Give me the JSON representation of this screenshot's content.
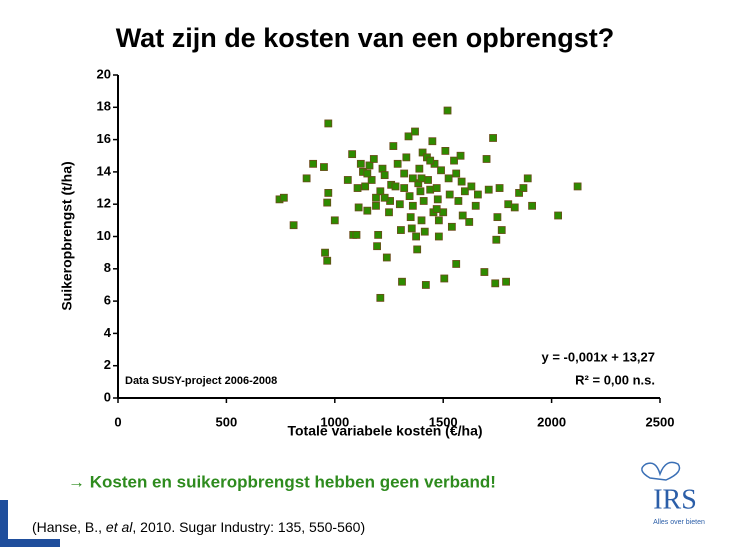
{
  "chart_data": {
    "type": "scatter",
    "title": "Wat zijn de kosten van een opbrengst?",
    "x_label": "Totale variabele kosten (€/ha)",
    "y_label": "Suikeropbrengst (t/ha)",
    "annotations": [
      "Data SUSY-project 2006-2008",
      "y = -0,001x + 13,27",
      "R² = 0,00 n.s."
    ],
    "color": "#2e8b00",
    "xlim": [
      0,
      2500
    ],
    "xticks": [
      0,
      500,
      1000,
      1500,
      2000,
      2500
    ],
    "ylim": [
      0,
      20
    ],
    "yticks": [
      0,
      2,
      4,
      6,
      8,
      10,
      12,
      14,
      16,
      18,
      20
    ],
    "x": [
      745,
      765,
      810,
      870,
      900,
      950,
      955,
      965,
      970,
      970,
      965,
      1000,
      1080,
      1085,
      1100,
      1105,
      1110,
      1120,
      1130,
      1140,
      1150,
      1160,
      1170,
      1180,
      1190,
      1195,
      1200,
      1210,
      1210,
      1220,
      1230,
      1240,
      1250,
      1255,
      1260,
      1270,
      1280,
      1290,
      1300,
      1305,
      1310,
      1320,
      1330,
      1340,
      1345,
      1350,
      1355,
      1360,
      1370,
      1375,
      1380,
      1385,
      1390,
      1395,
      1400,
      1405,
      1410,
      1415,
      1420,
      1425,
      1430,
      1440,
      1450,
      1455,
      1460,
      1470,
      1475,
      1480,
      1490,
      1500,
      1505,
      1510,
      1520,
      1525,
      1530,
      1540,
      1550,
      1560,
      1570,
      1580,
      1585,
      1590,
      1600,
      1620,
      1630,
      1650,
      1660,
      1690,
      1700,
      1710,
      1730,
      1740,
      1745,
      1750,
      1760,
      1770,
      1790,
      1800,
      1830,
      1850,
      1870,
      1890,
      1910,
      2030,
      2120,
      1480,
      1360,
      1230,
      1440,
      1150,
      1560,
      1400,
      1320,
      1470,
      1190,
      1060
    ],
    "values": [
      12.3,
      12.4,
      10.7,
      13.6,
      14.5,
      14.3,
      9,
      8.5,
      17,
      12.7,
      12.1,
      11,
      15.1,
      10.1,
      10.1,
      13,
      11.8,
      14.5,
      14,
      13.1,
      11.6,
      14.4,
      13.5,
      14.8,
      11.9,
      9.4,
      10.1,
      6.2,
      12.8,
      14.2,
      13.8,
      8.7,
      11.5,
      12.2,
      13.2,
      15.6,
      13.1,
      14.5,
      12,
      10.4,
      7.2,
      13,
      14.9,
      16.2,
      12.5,
      11.2,
      10.5,
      11.9,
      16.5,
      10,
      9.2,
      13.3,
      14.2,
      12.8,
      11,
      15.2,
      12.2,
      10.3,
      7,
      14.9,
      13.5,
      12.9,
      15.9,
      11.5,
      14.5,
      13,
      12.3,
      10,
      14.1,
      11.5,
      7.4,
      15.3,
      17.8,
      13.6,
      12.6,
      10.6,
      14.7,
      8.3,
      12.2,
      15,
      13.4,
      11.3,
      12.8,
      10.9,
      13.1,
      11.9,
      12.6,
      7.8,
      14.8,
      12.9,
      16.1,
      7.1,
      9.8,
      11.2,
      13,
      10.4,
      7.2,
      12,
      11.8,
      12.7,
      13,
      13.6,
      11.9,
      11.3,
      13.1,
      11,
      13.6,
      12.4,
      14.7,
      13.9,
      13.9,
      13.6,
      13.9,
      11.7,
      12.4,
      13.5
    ]
  },
  "footer": {
    "conclusion": "→ Kosten en suikeropbrengst hebben geen verband!",
    "citation": [
      "(Hanse, B., ",
      "et al",
      ", 2010. Sugar Industry: 135, 550-560)"
    ]
  },
  "logo": {
    "name": "IRS",
    "tagline": "Alles over bieten"
  }
}
